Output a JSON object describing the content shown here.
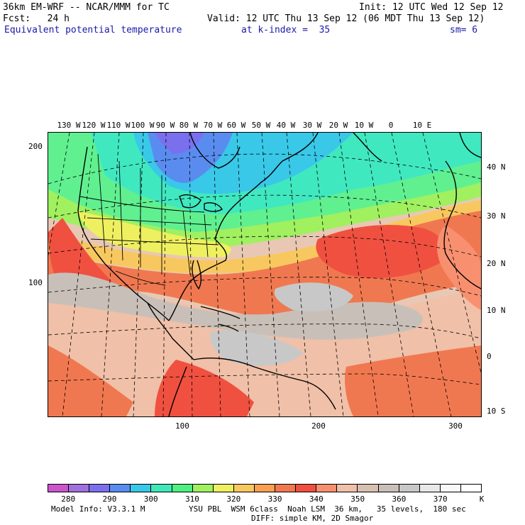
{
  "header": {
    "line1_left": "36km EM-WRF -- NCAR/MMM for TC",
    "line1_right": "Init: 12 UTC Wed 12 Sep 12",
    "line2_left": "Fcst:   24 h",
    "line2_right": "Valid: 12 UTC Thu 13 Sep 12 (06 MDT Thu 13 Sep 12)",
    "line3_field": "Equivalent potential temperature",
    "line3_level": "at k-index =  35",
    "line3_smooth": "sm= 6"
  },
  "grid_labels": {
    "y_left": [
      "200",
      "100"
    ],
    "x_bottom": [
      "100",
      "200",
      "300"
    ],
    "lon_top": [
      "130 W",
      "120 W",
      "110 W",
      "100 W",
      "90 W",
      "80 W",
      "70 W",
      "60 W",
      "50 W",
      "40 W",
      "30 W",
      "20 W",
      "10 W",
      "0",
      "10 E"
    ],
    "lat_right": [
      "40 N",
      "30 N",
      "20 N",
      "10 N",
      "0",
      "10 S"
    ]
  },
  "colorbar": {
    "colors": [
      "#cc55cc",
      "#a070dd",
      "#7a70ee",
      "#5a8cf0",
      "#39c8e8",
      "#40e8b8",
      "#50f080",
      "#a0f060",
      "#eef060",
      "#f8c860",
      "#f8a050",
      "#f07850",
      "#f05040",
      "#f89070",
      "#f0c0a8",
      "#d8c0b0",
      "#c8c0b8",
      "#c8c8c8",
      "#e8e8e8",
      "#f8f8f8",
      "#ffffff"
    ],
    "labels": [
      "280",
      "290",
      "300",
      "310",
      "320",
      "330",
      "340",
      "350",
      "360",
      "370"
    ],
    "unit": "K"
  },
  "footer": {
    "model_info": "Model Info: V3.3.1 M",
    "physics_line1": "YSU PBL  WSM 6class  Noah LSM  36 km,   35 levels,  180 sec",
    "physics_line2": "DIFF: simple KM, 2D Smagor"
  }
}
